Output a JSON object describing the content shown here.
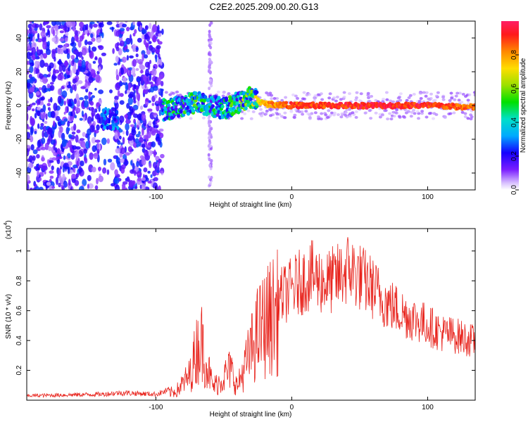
{
  "title": "C2E2.2025.209.00.20.G13",
  "chart_data": [
    {
      "type": "heatmap",
      "xlabel": "Height of straight line (km)",
      "ylabel": "Frequency (Hz)",
      "xlim": [
        -195,
        135
      ],
      "ylim": [
        -50,
        50
      ],
      "xticks": [
        -100,
        0,
        100
      ],
      "yticks": [
        -40,
        -20,
        0,
        20,
        40
      ],
      "colorbar": {
        "label": "Normalized spectral amplitude",
        "range": [
          0,
          1
        ],
        "ticks": [
          "0.0",
          "0.2",
          "0.4",
          "0.6",
          "0.8"
        ],
        "tick_values": [
          0,
          0.2,
          0.4,
          0.6,
          0.8
        ]
      },
      "ridge": {
        "description_values": [
          {
            "x": -135,
            "freq": -8,
            "amp": 0.35
          },
          {
            "x": -90,
            "freq": -2,
            "amp": 0.45
          },
          {
            "x": -70,
            "freq": 2,
            "amp": 0.5
          },
          {
            "x": -50,
            "freq": -2,
            "amp": 0.45
          },
          {
            "x": -30,
            "freq": 5,
            "amp": 0.6
          },
          {
            "x": -20,
            "freq": 1,
            "amp": 0.85
          },
          {
            "x": 0,
            "freq": 0,
            "amp": 0.95
          },
          {
            "x": 50,
            "freq": 0,
            "amp": 1.0
          },
          {
            "x": 100,
            "freq": 0,
            "amp": 1.0
          },
          {
            "x": 130,
            "freq": -1,
            "amp": 0.9
          }
        ]
      }
    },
    {
      "type": "line",
      "xlabel": "Height of straight line (km)",
      "ylabel": "SNR (10 * v/v)",
      "multiplier": "(x10",
      "multiplier_exp": "4",
      "multiplier_close": ")",
      "xlim": [
        -195,
        135
      ],
      "ylim": [
        0,
        1.15
      ],
      "xticks": [
        -100,
        0,
        100
      ],
      "yticks": [
        0.2,
        0.4,
        0.6,
        0.8,
        1.0
      ],
      "ytick_labels": [
        "0.2",
        "0.4",
        "0.6",
        "0.8",
        "1"
      ],
      "color": "#e8231c",
      "envelope": {
        "x": [
          -195,
          -140,
          -125,
          -100,
          -85,
          -75,
          -70,
          -67,
          -63,
          -58,
          -52,
          -45,
          -40,
          -32,
          -25,
          -15,
          -5,
          5,
          15,
          25,
          35,
          42,
          50,
          58,
          70,
          85,
          100,
          110,
          120,
          135
        ],
        "y": [
          0.03,
          0.04,
          0.05,
          0.04,
          0.08,
          0.22,
          0.45,
          0.55,
          0.35,
          0.12,
          0.18,
          0.28,
          0.12,
          0.38,
          0.6,
          0.75,
          0.82,
          0.9,
          0.96,
          0.9,
          0.95,
          1.02,
          0.95,
          0.88,
          0.75,
          0.65,
          0.58,
          0.52,
          0.5,
          0.45
        ]
      }
    }
  ]
}
